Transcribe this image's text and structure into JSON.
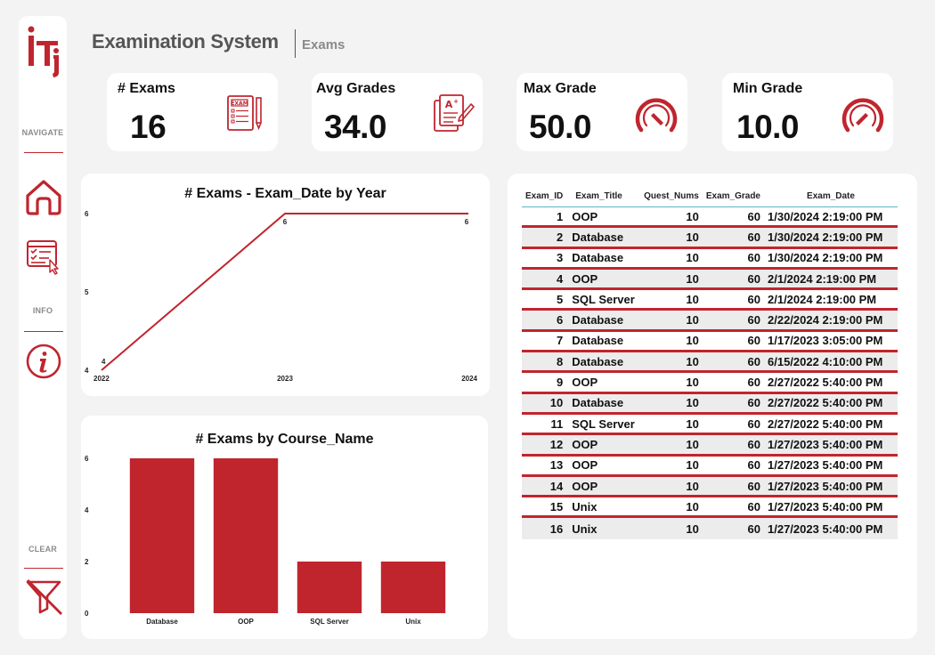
{
  "header": {
    "title": "Examination System",
    "subtitle": "Exams"
  },
  "sidebar": {
    "navigate_label": "NAVIGATE",
    "info_label": "INFO",
    "clear_label": "CLEAR"
  },
  "kpis": [
    {
      "label": "# Exams",
      "value": "16",
      "icon": "exam-sheet-icon"
    },
    {
      "label": "Avg Grades",
      "value": "34.0",
      "icon": "graded-paper-icon"
    },
    {
      "label": "Max Grade",
      "value": "50.0",
      "icon": "gauge-high-icon"
    },
    {
      "label": "Min Grade",
      "value": "10.0",
      "icon": "gauge-low-icon"
    }
  ],
  "colors": {
    "accent": "#c0252e",
    "background": "#f3f3f3",
    "card": "#ffffff"
  },
  "chart_data": [
    {
      "type": "line",
      "title": "# Exams - Exam_Date by Year",
      "x": [
        "2022",
        "2023",
        "2024"
      ],
      "series": [
        {
          "values": [
            4,
            6,
            6
          ]
        }
      ],
      "yticks": [
        "4",
        "5",
        "6"
      ],
      "ylim": [
        4,
        6
      ],
      "data_labels": [
        "4",
        "6",
        "6"
      ]
    },
    {
      "type": "bar",
      "title": "# Exams by Course_Name",
      "categories": [
        "Database",
        "OOP",
        "SQL Server",
        "Unix"
      ],
      "values": [
        6,
        6,
        2,
        2
      ],
      "yticks": [
        "0",
        "2",
        "4",
        "6"
      ],
      "ylim": [
        0,
        6
      ]
    }
  ],
  "table": {
    "columns": [
      "Exam_ID",
      "Exam_Title",
      "Quest_Nums",
      "Exam_Grade",
      "Exam_Date"
    ],
    "rows": [
      [
        "1",
        "OOP",
        "10",
        "60",
        "1/30/2024 2:19:00 PM"
      ],
      [
        "2",
        "Database",
        "10",
        "60",
        "1/30/2024 2:19:00 PM"
      ],
      [
        "3",
        "Database",
        "10",
        "60",
        "1/30/2024 2:19:00 PM"
      ],
      [
        "4",
        "OOP",
        "10",
        "60",
        "2/1/2024 2:19:00 PM"
      ],
      [
        "5",
        "SQL Server",
        "10",
        "60",
        "2/1/2024 2:19:00 PM"
      ],
      [
        "6",
        "Database",
        "10",
        "60",
        "2/22/2024 2:19:00 PM"
      ],
      [
        "7",
        "Database",
        "10",
        "60",
        "1/17/2023 3:05:00 PM"
      ],
      [
        "8",
        "Database",
        "10",
        "60",
        "6/15/2022 4:10:00 PM"
      ],
      [
        "9",
        "OOP",
        "10",
        "60",
        "2/27/2022 5:40:00 PM"
      ],
      [
        "10",
        "Database",
        "10",
        "60",
        "2/27/2022 5:40:00 PM"
      ],
      [
        "11",
        "SQL Server",
        "10",
        "60",
        "2/27/2022 5:40:00 PM"
      ],
      [
        "12",
        "OOP",
        "10",
        "60",
        "1/27/2023 5:40:00 PM"
      ],
      [
        "13",
        "OOP",
        "10",
        "60",
        "1/27/2023 5:40:00 PM"
      ],
      [
        "14",
        "OOP",
        "10",
        "60",
        "1/27/2023 5:40:00 PM"
      ],
      [
        "15",
        "Unix",
        "10",
        "60",
        "1/27/2023 5:40:00 PM"
      ],
      [
        "16",
        "Unix",
        "10",
        "60",
        "1/27/2023 5:40:00 PM"
      ]
    ]
  }
}
